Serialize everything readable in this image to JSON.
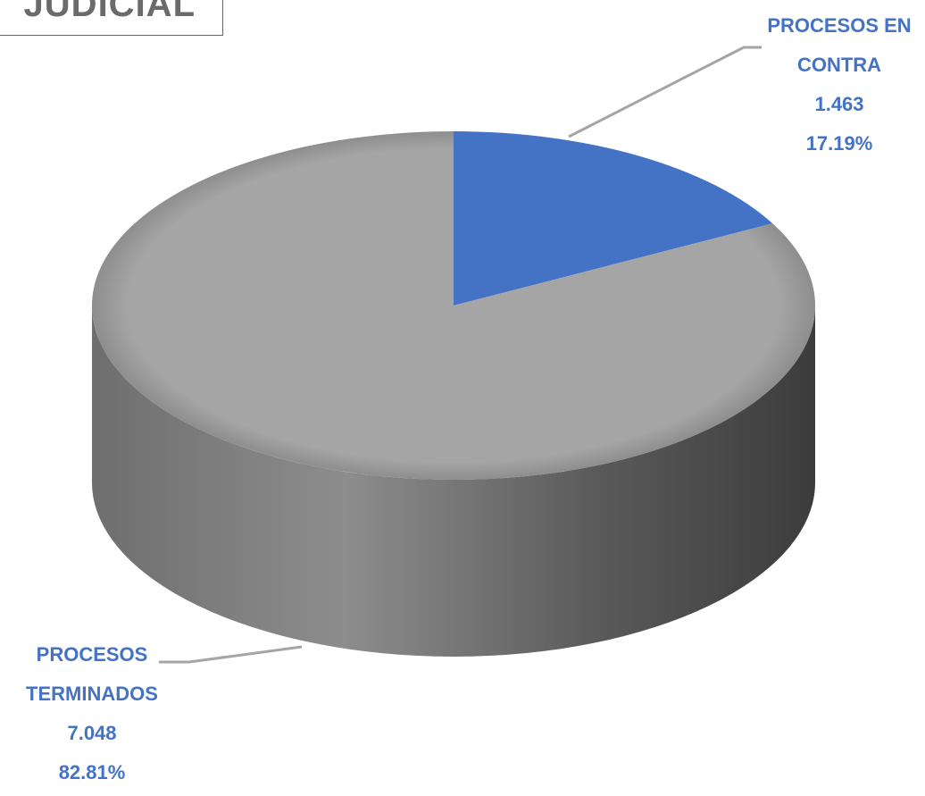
{
  "title": "JUDICIAL",
  "chart_data": {
    "type": "pie",
    "style": "3d",
    "title": "JUDICIAL",
    "categories": [
      "PROCESOS EN CONTRA",
      "PROCESOS TERMINADOS"
    ],
    "values": [
      1463,
      7048
    ],
    "value_labels": [
      "1.463",
      "7.048"
    ],
    "percent_labels": [
      "17.19%",
      "82.81%"
    ],
    "percents": [
      17.19,
      82.81
    ],
    "colors": [
      "#4472c4",
      "#a5a5a5"
    ],
    "label_color": "#4472c4",
    "legend": "none",
    "labels": [
      {
        "lines": [
          "PROCESOS EN",
          "CONTRA",
          "1.463",
          "17.19%"
        ]
      },
      {
        "lines": [
          "PROCESOS",
          "TERMINADOS",
          "7.048",
          "82.81%"
        ]
      }
    ]
  }
}
